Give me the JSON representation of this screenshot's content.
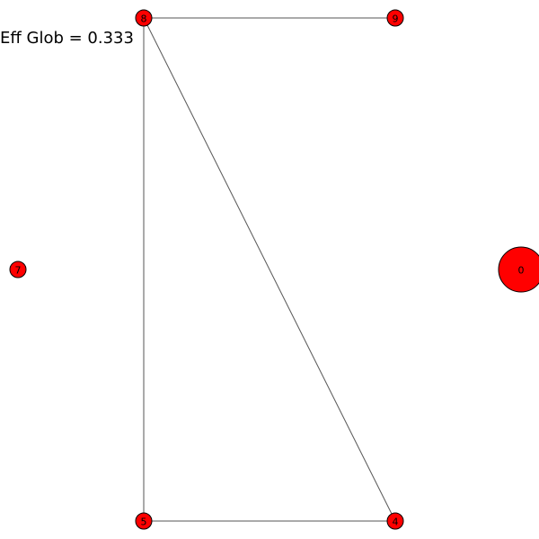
{
  "annotation": "Eff Glob = 0.333",
  "node_color": "#ff0000",
  "nodes": [
    {
      "id": "8",
      "label": "8"
    },
    {
      "id": "9",
      "label": "9"
    },
    {
      "id": "7",
      "label": "7"
    },
    {
      "id": "0",
      "label": "0"
    },
    {
      "id": "5",
      "label": "5"
    },
    {
      "id": "4",
      "label": "4"
    }
  ],
  "edges": [
    {
      "source": "8",
      "target": "9"
    },
    {
      "source": "8",
      "target": "5"
    },
    {
      "source": "8",
      "target": "4"
    },
    {
      "source": "5",
      "target": "4"
    }
  ]
}
